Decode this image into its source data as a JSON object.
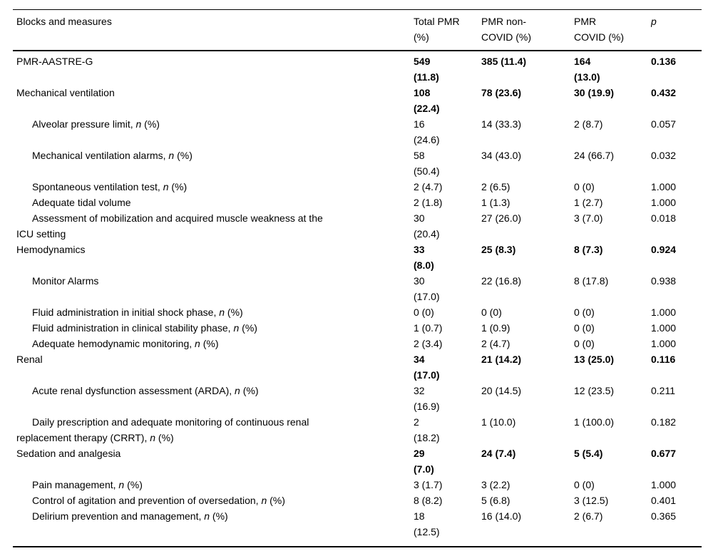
{
  "table": {
    "header": {
      "col0": "Blocks and measures",
      "col1": "Total PMR\n(%)",
      "col2": "PMR non-\nCOVID (%)",
      "col3": "PMR\nCOVID (%)",
      "col4": "p"
    },
    "rows": [
      {
        "kind": "block",
        "bold": true,
        "label": [
          {
            "t": "PMR-AASTRE-G"
          }
        ],
        "values": [
          "549\n(11.8)",
          "385 (11.4)",
          "164\n(13.0)",
          "0.136"
        ]
      },
      {
        "kind": "block",
        "bold": true,
        "label": [
          {
            "t": "Mechanical ventilation"
          }
        ],
        "values": [
          "108\n(22.4)",
          "78 (23.6)",
          "30 (19.9)",
          "0.432"
        ]
      },
      {
        "kind": "measure",
        "bold": false,
        "label": [
          {
            "t": "Alveolar pressure limit, "
          },
          {
            "t": "n",
            "i": true
          },
          {
            "t": " (%)"
          }
        ],
        "values": [
          "16\n(24.6)",
          "14 (33.3)",
          "2 (8.7)",
          "0.057"
        ]
      },
      {
        "kind": "measure",
        "bold": false,
        "label": [
          {
            "t": "Mechanical ventilation alarms, "
          },
          {
            "t": "n",
            "i": true
          },
          {
            "t": " (%)"
          }
        ],
        "values": [
          "58\n(50.4)",
          "34 (43.0)",
          "24 (66.7)",
          "0.032"
        ]
      },
      {
        "kind": "measure",
        "bold": false,
        "label": [
          {
            "t": "Spontaneous ventilation test, "
          },
          {
            "t": "n",
            "i": true
          },
          {
            "t": " (%)"
          }
        ],
        "values": [
          "2 (4.7)",
          "2 (6.5)",
          "0 (0)",
          "1.000"
        ]
      },
      {
        "kind": "measure",
        "bold": false,
        "label": [
          {
            "t": "Adequate tidal volume"
          }
        ],
        "values": [
          "2 (1.8)",
          "1 (1.3)",
          "1 (2.7)",
          "1.000"
        ]
      },
      {
        "kind": "measure",
        "bold": false,
        "label": [
          {
            "t": "Assessment of mobilization and acquired muscle weakness at the\nICU setting"
          }
        ],
        "values": [
          "30\n(20.4)",
          "27 (26.0)",
          "3 (7.0)",
          "0.018"
        ]
      },
      {
        "kind": "block",
        "bold": true,
        "label": [
          {
            "t": "Hemodynamics"
          }
        ],
        "values": [
          "33\n(8.0)",
          "25 (8.3)",
          "8 (7.3)",
          "0.924"
        ]
      },
      {
        "kind": "measure",
        "bold": false,
        "label": [
          {
            "t": "Monitor Alarms"
          }
        ],
        "values": [
          "30\n(17.0)",
          "22 (16.8)",
          "8 (17.8)",
          "0.938"
        ]
      },
      {
        "kind": "measure",
        "bold": false,
        "label": [
          {
            "t": "Fluid administration in initial shock phase, "
          },
          {
            "t": "n",
            "i": true
          },
          {
            "t": " (%)"
          }
        ],
        "values": [
          "0 (0)",
          "0 (0)",
          "0 (0)",
          "1.000"
        ]
      },
      {
        "kind": "measure",
        "bold": false,
        "label": [
          {
            "t": "Fluid administration in clinical stability phase, "
          },
          {
            "t": "n",
            "i": true
          },
          {
            "t": " (%)"
          }
        ],
        "values": [
          "1 (0.7)",
          "1 (0.9)",
          "0 (0)",
          "1.000"
        ]
      },
      {
        "kind": "measure",
        "bold": false,
        "label": [
          {
            "t": "Adequate hemodynamic monitoring, "
          },
          {
            "t": "n",
            "i": true
          },
          {
            "t": " (%)"
          }
        ],
        "values": [
          "2 (3.4)",
          "2 (4.7)",
          "0 (0)",
          "1.000"
        ]
      },
      {
        "kind": "block",
        "bold": true,
        "label": [
          {
            "t": "Renal"
          }
        ],
        "values": [
          "34\n(17.0)",
          "21 (14.2)",
          "13 (25.0)",
          "0.116"
        ]
      },
      {
        "kind": "measure",
        "bold": false,
        "label": [
          {
            "t": "Acute renal dysfunction assessment (ARDA), "
          },
          {
            "t": "n",
            "i": true
          },
          {
            "t": " (%)"
          }
        ],
        "values": [
          "32\n(16.9)",
          "20 (14.5)",
          "12 (23.5)",
          "0.211"
        ]
      },
      {
        "kind": "measure",
        "bold": false,
        "label": [
          {
            "t": "Daily prescription and adequate monitoring of continuous renal\nreplacement therapy (CRRT), "
          },
          {
            "t": "n",
            "i": true
          },
          {
            "t": " (%)"
          }
        ],
        "values": [
          "2\n(18.2)",
          "1 (10.0)",
          "1 (100.0)",
          "0.182"
        ]
      },
      {
        "kind": "block",
        "bold": true,
        "label": [
          {
            "t": "Sedation and analgesia"
          }
        ],
        "values": [
          "29\n(7.0)",
          "24 (7.4)",
          "5 (5.4)",
          "0.677"
        ]
      },
      {
        "kind": "measure",
        "bold": false,
        "label": [
          {
            "t": "Pain management, "
          },
          {
            "t": "n",
            "i": true
          },
          {
            "t": " (%)"
          }
        ],
        "values": [
          "3 (1.7)",
          "3 (2.2)",
          "0 (0)",
          "1.000"
        ]
      },
      {
        "kind": "measure",
        "bold": false,
        "label": [
          {
            "t": "Control of agitation and prevention of oversedation, "
          },
          {
            "t": "n",
            "i": true
          },
          {
            "t": " (%)"
          }
        ],
        "values": [
          "8 (8.2)",
          "5 (6.8)",
          "3 (12.5)",
          "0.401"
        ]
      },
      {
        "kind": "measure",
        "bold": false,
        "label": [
          {
            "t": "Delirium prevention and management, "
          },
          {
            "t": "n",
            "i": true
          },
          {
            "t": " (%)"
          }
        ],
        "values": [
          "18\n(12.5)",
          "16 (14.0)",
          "2 (6.7)",
          "0.365"
        ]
      }
    ]
  }
}
